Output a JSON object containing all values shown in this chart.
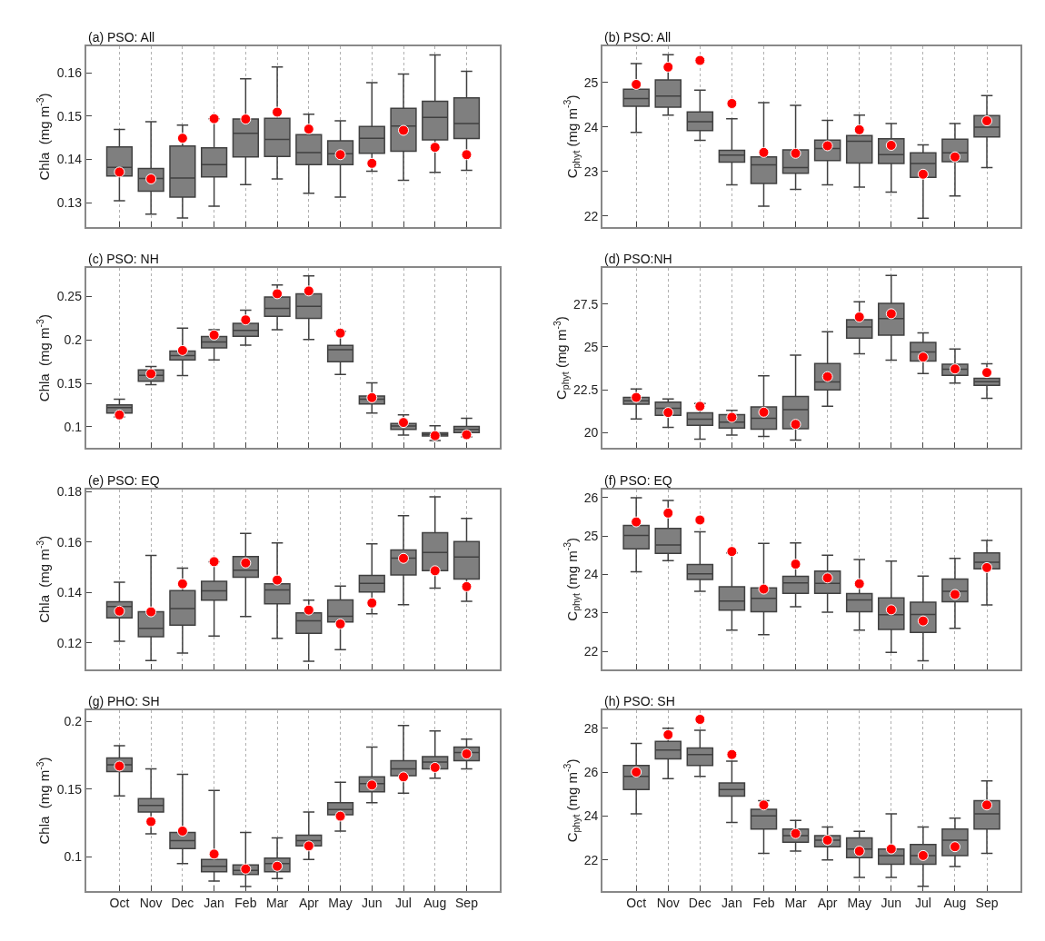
{
  "chart_data": [
    {
      "type": "box",
      "title": "(a) PSO: All",
      "ylabel": "Chla  (mg m$^{-3}$)",
      "categories": [
        "Oct",
        "Nov",
        "Dec",
        "Jan",
        "Feb",
        "Mar",
        "Apr",
        "May",
        "Jun",
        "Jul",
        "Aug",
        "Sep"
      ],
      "ylim": [
        0.1245,
        0.166
      ],
      "yticks": [
        0.13,
        0.14,
        0.15,
        0.16
      ],
      "grid": "x",
      "tick_labels": "y",
      "marker": "circle",
      "series": [
        {
          "color": "#7f7f7f",
          "boxes": [
            {
              "low": 0.1305,
              "q1": 0.1362,
              "median": 0.1382,
              "q3": 0.1429,
              "high": 0.1469
            },
            {
              "low": 0.1274,
              "q1": 0.1327,
              "median": 0.1356,
              "q3": 0.1379,
              "high": 0.1487
            },
            {
              "low": 0.1265,
              "q1": 0.1313,
              "median": 0.1357,
              "q3": 0.1431,
              "high": 0.1479
            },
            {
              "low": 0.1292,
              "q1": 0.136,
              "median": 0.1388,
              "q3": 0.1427,
              "high": 0.1494
            },
            {
              "low": 0.1342,
              "q1": 0.1406,
              "median": 0.146,
              "q3": 0.1493,
              "high": 0.1586
            },
            {
              "low": 0.1355,
              "q1": 0.1407,
              "median": 0.1446,
              "q3": 0.1495,
              "high": 0.1613
            },
            {
              "low": 0.1322,
              "q1": 0.1388,
              "median": 0.1416,
              "q3": 0.1457,
              "high": 0.1504
            },
            {
              "low": 0.1313,
              "q1": 0.1388,
              "median": 0.1413,
              "q3": 0.1443,
              "high": 0.1489
            },
            {
              "low": 0.1373,
              "q1": 0.1414,
              "median": 0.1449,
              "q3": 0.1476,
              "high": 0.1577
            },
            {
              "low": 0.1352,
              "q1": 0.1419,
              "median": 0.1477,
              "q3": 0.1518,
              "high": 0.1597
            },
            {
              "low": 0.137,
              "q1": 0.1445,
              "median": 0.1497,
              "q3": 0.1534,
              "high": 0.1641
            },
            {
              "low": 0.1375,
              "q1": 0.1448,
              "median": 0.1483,
              "q3": 0.1542,
              "high": 0.1603
            }
          ]
        },
        {
          "type": "scatter",
          "color": "#ff0000",
          "x": [
            "Oct",
            "Nov",
            "Dec",
            "Jan",
            "Feb",
            "Mar",
            "Apr",
            "May",
            "Jun",
            "Jul",
            "Aug",
            "Sep"
          ],
          "values": [
            0.1371,
            0.1355,
            0.1449,
            0.1494,
            0.1493,
            0.1509,
            0.147,
            0.1411,
            0.1391,
            0.1467,
            0.1428,
            0.1411
          ]
        }
      ]
    },
    {
      "type": "box",
      "title": "(b) PSO: All",
      "ylabel": "C$_{phyt}$ (mg m$^{-3}$)",
      "categories": [
        "Oct",
        "Nov",
        "Dec",
        "Jan",
        "Feb",
        "Mar",
        "Apr",
        "May",
        "Jun",
        "Jul",
        "Aug",
        "Sep"
      ],
      "ylim": [
        21.76,
        25.81
      ],
      "yticks": [
        22,
        23,
        24,
        25
      ],
      "grid": "x",
      "tick_labels": "y",
      "marker": "circle",
      "series": [
        {
          "color": "#7f7f7f",
          "boxes": [
            {
              "low": 23.88,
              "q1": 24.47,
              "median": 24.64,
              "q3": 24.85,
              "high": 25.43
            },
            {
              "low": 24.27,
              "q1": 24.45,
              "median": 24.7,
              "q3": 25.06,
              "high": 25.63
            },
            {
              "low": 23.7,
              "q1": 23.92,
              "median": 24.12,
              "q3": 24.34,
              "high": 24.83
            },
            {
              "low": 22.7,
              "q1": 23.21,
              "median": 23.37,
              "q3": 23.48,
              "high": 24.19
            },
            {
              "low": 22.22,
              "q1": 22.73,
              "median": 23.15,
              "q3": 23.33,
              "high": 24.55
            },
            {
              "low": 22.6,
              "q1": 22.96,
              "median": 23.09,
              "q3": 23.49,
              "high": 24.49
            },
            {
              "low": 22.7,
              "q1": 23.25,
              "median": 23.52,
              "q3": 23.71,
              "high": 24.15
            },
            {
              "low": 22.65,
              "q1": 23.19,
              "median": 23.68,
              "q3": 23.81,
              "high": 24.27
            },
            {
              "low": 22.54,
              "q1": 23.18,
              "median": 23.38,
              "q3": 23.74,
              "high": 24.08
            },
            {
              "low": 21.95,
              "q1": 22.87,
              "median": 23.18,
              "q3": 23.42,
              "high": 23.6
            },
            {
              "low": 22.45,
              "q1": 23.22,
              "median": 23.42,
              "q3": 23.73,
              "high": 24.08
            },
            {
              "low": 23.09,
              "q1": 23.78,
              "median": 24.0,
              "q3": 24.26,
              "high": 24.71
            }
          ]
        },
        {
          "type": "scatter",
          "color": "#ff0000",
          "x": [
            "Oct",
            "Nov",
            "Dec",
            "Jan",
            "Feb",
            "Mar",
            "Apr",
            "May",
            "Jun",
            "Jul",
            "Aug",
            "Sep"
          ],
          "values": [
            24.96,
            25.35,
            25.5,
            24.53,
            23.43,
            23.41,
            23.58,
            23.94,
            23.59,
            22.94,
            23.33,
            24.14
          ]
        }
      ]
    },
    {
      "type": "box",
      "title": "(c) PSO: NH",
      "ylabel": "Chla  (mg m$^{-3}$)",
      "categories": [
        "Oct",
        "Nov",
        "Dec",
        "Jan",
        "Feb",
        "Mar",
        "Apr",
        "May",
        "Jun",
        "Jul",
        "Aug",
        "Sep"
      ],
      "ylim": [
        0.0757,
        0.283
      ],
      "yticks": [
        0.1,
        0.15,
        0.2,
        0.25
      ],
      "grid": "x",
      "tick_labels": "y",
      "marker": "circle",
      "series": [
        {
          "color": "#7f7f7f",
          "boxes": [
            {
              "low": 0.1116,
              "q1": 0.1159,
              "median": 0.1221,
              "q3": 0.1254,
              "high": 0.1319
            },
            {
              "low": 0.1486,
              "q1": 0.1525,
              "median": 0.1594,
              "q3": 0.1656,
              "high": 0.1696
            },
            {
              "low": 0.1591,
              "q1": 0.1772,
              "median": 0.1822,
              "q3": 0.1873,
              "high": 0.2138
            },
            {
              "low": 0.1772,
              "q1": 0.1909,
              "median": 0.1978,
              "q3": 0.204,
              "high": 0.212
            },
            {
              "low": 0.1942,
              "q1": 0.2043,
              "median": 0.2112,
              "q3": 0.2192,
              "high": 0.2344
            },
            {
              "low": 0.212,
              "q1": 0.2272,
              "median": 0.2366,
              "q3": 0.2496,
              "high": 0.2634
            },
            {
              "low": 0.2007,
              "q1": 0.225,
              "median": 0.2388,
              "q3": 0.2533,
              "high": 0.2739
            },
            {
              "low": 0.1605,
              "q1": 0.175,
              "median": 0.1888,
              "q3": 0.1938,
              "high": 0.2101
            },
            {
              "low": 0.1159,
              "q1": 0.1264,
              "median": 0.1319,
              "q3": 0.1355,
              "high": 0.1507
            },
            {
              "low": 0.0906,
              "q1": 0.0971,
              "median": 0.1011,
              "q3": 0.104,
              "high": 0.1138
            },
            {
              "low": 0.0844,
              "q1": 0.0895,
              "median": 0.0913,
              "q3": 0.0931,
              "high": 0.1014
            },
            {
              "low": 0.0885,
              "q1": 0.0935,
              "median": 0.097,
              "q3": 0.1005,
              "high": 0.11
            }
          ]
        },
        {
          "type": "scatter",
          "color": "#ff0000",
          "x": [
            "Oct",
            "Nov",
            "Dec",
            "Jan",
            "Feb",
            "Mar",
            "Apr",
            "May",
            "Jun",
            "Jul",
            "Aug",
            "Sep"
          ],
          "values": [
            0.1138,
            0.1612,
            0.188,
            0.2058,
            0.2232,
            0.2533,
            0.2565,
            0.208,
            0.1337,
            0.1051,
            0.0899,
            0.091
          ]
        }
      ]
    },
    {
      "type": "box",
      "title": "(d) PSO:NH",
      "ylabel": "C$_{phyt}$ (mg m$^{-3}$)",
      "categories": [
        "Oct",
        "Nov",
        "Dec",
        "Jan",
        "Feb",
        "Mar",
        "Apr",
        "May",
        "Jun",
        "Jul",
        "Aug",
        "Sep"
      ],
      "ylim": [
        19.1,
        29.6
      ],
      "yticks": [
        20,
        22.5,
        25,
        27.5
      ],
      "grid": "x",
      "tick_labels": "y",
      "marker": "circle",
      "series": [
        {
          "color": "#7f7f7f",
          "boxes": [
            {
              "low": 20.8,
              "q1": 21.66,
              "median": 21.85,
              "q3": 22.05,
              "high": 22.54
            },
            {
              "low": 20.31,
              "q1": 21.0,
              "median": 21.42,
              "q3": 21.77,
              "high": 21.96
            },
            {
              "low": 19.62,
              "q1": 20.42,
              "median": 20.78,
              "q3": 21.15,
              "high": 21.7
            },
            {
              "low": 19.86,
              "q1": 20.27,
              "median": 20.61,
              "q3": 21.04,
              "high": 21.3
            },
            {
              "low": 19.77,
              "q1": 20.2,
              "median": 20.83,
              "q3": 21.49,
              "high": 23.31
            },
            {
              "low": 19.56,
              "q1": 20.23,
              "median": 21.34,
              "q3": 22.11,
              "high": 24.51
            },
            {
              "low": 21.53,
              "q1": 22.49,
              "median": 22.95,
              "q3": 24.02,
              "high": 25.88
            },
            {
              "low": 24.59,
              "q1": 25.51,
              "median": 26.16,
              "q3": 26.58,
              "high": 27.63
            },
            {
              "low": 24.23,
              "q1": 25.68,
              "median": 26.65,
              "q3": 27.53,
              "high": 29.17
            },
            {
              "low": 23.44,
              "q1": 24.17,
              "median": 24.7,
              "q3": 25.26,
              "high": 25.81
            },
            {
              "low": 22.88,
              "q1": 23.33,
              "median": 23.69,
              "q3": 23.98,
              "high": 24.87
            },
            {
              "low": 22.0,
              "q1": 22.75,
              "median": 22.96,
              "q3": 23.16,
              "high": 24.01
            }
          ]
        },
        {
          "type": "scatter",
          "color": "#ff0000",
          "x": [
            "Oct",
            "Nov",
            "Dec",
            "Jan",
            "Feb",
            "Mar",
            "Apr",
            "May",
            "Jun",
            "Jul",
            "Aug",
            "Sep"
          ],
          "values": [
            22.05,
            21.17,
            21.53,
            20.89,
            21.19,
            20.48,
            23.26,
            26.74,
            26.93,
            24.4,
            23.71,
            23.5
          ]
        }
      ]
    },
    {
      "type": "box",
      "title": "(e) PSO: EQ",
      "ylabel": "Chla  (mg m$^{-3}$)",
      "categories": [
        "Oct",
        "Nov",
        "Dec",
        "Jan",
        "Feb",
        "Mar",
        "Apr",
        "May",
        "Jun",
        "Jul",
        "Aug",
        "Sep"
      ],
      "ylim": [
        0.1095,
        0.1809
      ],
      "yticks": [
        0.12,
        0.14,
        0.16,
        0.18
      ],
      "grid": "x",
      "tick_labels": "y",
      "marker": "circle",
      "series": [
        {
          "color": "#7f7f7f",
          "boxes": [
            {
              "low": 0.1206,
              "q1": 0.1299,
              "median": 0.1344,
              "q3": 0.1363,
              "high": 0.144
            },
            {
              "low": 0.113,
              "q1": 0.1224,
              "median": 0.1258,
              "q3": 0.1323,
              "high": 0.1547
            },
            {
              "low": 0.1159,
              "q1": 0.127,
              "median": 0.1336,
              "q3": 0.1407,
              "high": 0.1496
            },
            {
              "low": 0.1227,
              "q1": 0.1369,
              "median": 0.1406,
              "q3": 0.1444,
              "high": 0.1521
            },
            {
              "low": 0.1304,
              "q1": 0.146,
              "median": 0.1488,
              "q3": 0.1542,
              "high": 0.1634
            },
            {
              "low": 0.1218,
              "q1": 0.1355,
              "median": 0.141,
              "q3": 0.1434,
              "high": 0.1596
            },
            {
              "low": 0.1127,
              "q1": 0.1238,
              "median": 0.1287,
              "q3": 0.1319,
              "high": 0.1369
            },
            {
              "low": 0.1173,
              "q1": 0.1283,
              "median": 0.1305,
              "q3": 0.137,
              "high": 0.1425
            },
            {
              "low": 0.1315,
              "q1": 0.1402,
              "median": 0.1436,
              "q3": 0.1467,
              "high": 0.1593
            },
            {
              "low": 0.1351,
              "q1": 0.1469,
              "median": 0.1536,
              "q3": 0.1568,
              "high": 0.1704
            },
            {
              "low": 0.1417,
              "q1": 0.1486,
              "median": 0.1558,
              "q3": 0.1637,
              "high": 0.1779
            },
            {
              "low": 0.1365,
              "q1": 0.1453,
              "median": 0.154,
              "q3": 0.1602,
              "high": 0.1693
            }
          ]
        },
        {
          "type": "scatter",
          "color": "#ff0000",
          "x": [
            "Oct",
            "Nov",
            "Dec",
            "Jan",
            "Feb",
            "Mar",
            "Apr",
            "May",
            "Jun",
            "Jul",
            "Aug",
            "Sep"
          ],
          "values": [
            0.1326,
            0.1323,
            0.1434,
            0.1522,
            0.1517,
            0.1449,
            0.133,
            0.1275,
            0.1358,
            0.1535,
            0.1486,
            0.1423
          ]
        }
      ]
    },
    {
      "type": "box",
      "title": "(f) PSO: EQ",
      "ylabel": "C$_{phyt}$ (mg m$^{-3}$)",
      "categories": [
        "Oct",
        "Nov",
        "Dec",
        "Jan",
        "Feb",
        "Mar",
        "Apr",
        "May",
        "Jun",
        "Jul",
        "Aug",
        "Sep"
      ],
      "ylim": [
        21.53,
        26.22
      ],
      "yticks": [
        22,
        23,
        24,
        25,
        26
      ],
      "grid": "x",
      "tick_labels": "y",
      "marker": "circle",
      "series": [
        {
          "color": "#7f7f7f",
          "boxes": [
            {
              "low": 24.07,
              "q1": 24.67,
              "median": 25.02,
              "q3": 25.28,
              "high": 26.0
            },
            {
              "low": 24.36,
              "q1": 24.55,
              "median": 24.77,
              "q3": 25.2,
              "high": 25.93
            },
            {
              "low": 23.56,
              "q1": 23.87,
              "median": 24.02,
              "q3": 24.26,
              "high": 25.11
            },
            {
              "low": 22.55,
              "q1": 23.07,
              "median": 23.31,
              "q3": 23.68,
              "high": 24.56
            },
            {
              "low": 22.43,
              "q1": 23.03,
              "median": 23.38,
              "q3": 23.65,
              "high": 24.81
            },
            {
              "low": 23.16,
              "q1": 23.51,
              "median": 23.78,
              "q3": 23.95,
              "high": 24.82
            },
            {
              "low": 23.02,
              "q1": 23.51,
              "median": 23.77,
              "q3": 24.09,
              "high": 24.5
            },
            {
              "low": 22.55,
              "q1": 23.03,
              "median": 23.34,
              "q3": 23.5,
              "high": 24.39
            },
            {
              "low": 21.97,
              "q1": 22.57,
              "median": 22.95,
              "q3": 23.39,
              "high": 24.35
            },
            {
              "low": 21.75,
              "q1": 22.49,
              "median": 22.96,
              "q3": 23.28,
              "high": 23.96
            },
            {
              "low": 22.6,
              "q1": 23.29,
              "median": 23.56,
              "q3": 23.88,
              "high": 24.42
            },
            {
              "low": 23.21,
              "q1": 24.15,
              "median": 24.32,
              "q3": 24.56,
              "high": 24.89
            }
          ]
        },
        {
          "type": "scatter",
          "color": "#ff0000",
          "x": [
            "Oct",
            "Nov",
            "Dec",
            "Jan",
            "Feb",
            "Mar",
            "Apr",
            "May",
            "Jun",
            "Jul",
            "Aug",
            "Sep"
          ],
          "values": [
            25.37,
            25.6,
            25.42,
            24.6,
            23.62,
            24.27,
            23.91,
            23.76,
            23.08,
            22.79,
            23.48,
            24.18
          ]
        }
      ]
    },
    {
      "type": "box",
      "title": "(g) PHO: SH",
      "ylabel": "Chla  (mg m$^{-3}$)",
      "categories": [
        "Oct",
        "Nov",
        "Dec",
        "Jan",
        "Feb",
        "Mar",
        "Apr",
        "May",
        "Jun",
        "Jul",
        "Aug",
        "Sep"
      ],
      "ylim": [
        0.075,
        0.208
      ],
      "yticks": [
        0.1,
        0.15,
        0.2
      ],
      "grid": "x",
      "marker": "circle",
      "series": [
        {
          "color": "#7f7f7f",
          "boxes": [
            {
              "low": 0.145,
              "q1": 0.163,
              "median": 0.168,
              "q3": 0.173,
              "high": 0.182
            },
            {
              "low": 0.117,
              "q1": 0.133,
              "median": 0.138,
              "q3": 0.143,
              "high": 0.165
            },
            {
              "low": 0.095,
              "q1": 0.106,
              "median": 0.112,
              "q3": 0.118,
              "high": 0.161
            },
            {
              "low": 0.082,
              "q1": 0.089,
              "median": 0.093,
              "q3": 0.098,
              "high": 0.149
            },
            {
              "low": 0.078,
              "q1": 0.087,
              "median": 0.09,
              "q3": 0.094,
              "high": 0.118
            },
            {
              "low": 0.084,
              "q1": 0.089,
              "median": 0.095,
              "q3": 0.099,
              "high": 0.114
            },
            {
              "low": 0.098,
              "q1": 0.108,
              "median": 0.112,
              "q3": 0.116,
              "high": 0.133
            },
            {
              "low": 0.119,
              "q1": 0.131,
              "median": 0.135,
              "q3": 0.14,
              "high": 0.155
            },
            {
              "low": 0.14,
              "q1": 0.148,
              "median": 0.154,
              "q3": 0.159,
              "high": 0.181
            },
            {
              "low": 0.147,
              "q1": 0.16,
              "median": 0.165,
              "q3": 0.171,
              "high": 0.197
            },
            {
              "low": 0.158,
              "q1": 0.165,
              "median": 0.17,
              "q3": 0.174,
              "high": 0.193
            },
            {
              "low": 0.165,
              "q1": 0.171,
              "median": 0.177,
              "q3": 0.181,
              "high": 0.187
            }
          ]
        },
        {
          "type": "scatter",
          "color": "#ff0000",
          "x": [
            "Oct",
            "Nov",
            "Dec",
            "Jan",
            "Feb",
            "Mar",
            "Apr",
            "May",
            "Jun",
            "Jul",
            "Aug",
            "Sep"
          ],
          "values": [
            0.167,
            0.126,
            0.119,
            0.102,
            0.091,
            0.093,
            0.108,
            0.13,
            0.153,
            0.159,
            0.166,
            0.176
          ]
        }
      ]
    },
    {
      "type": "box",
      "title": "(h) PSO: SH",
      "ylabel": "C$_{phyt}$ (mg m$^{-3}$)",
      "categories": [
        "Oct",
        "Nov",
        "Dec",
        "Jan",
        "Feb",
        "Mar",
        "Apr",
        "May",
        "Jun",
        "Jul",
        "Aug",
        "Sep"
      ],
      "ylim": [
        20.6,
        28.8
      ],
      "yticks": [
        22,
        24,
        26,
        28
      ],
      "grid": "x",
      "marker": "circle",
      "series": [
        {
          "color": "#7f7f7f",
          "boxes": [
            {
              "low": 24.1,
              "q1": 25.2,
              "median": 25.8,
              "q3": 26.3,
              "high": 27.3
            },
            {
              "low": 25.7,
              "q1": 26.6,
              "median": 27.0,
              "q3": 27.4,
              "high": 28.0
            },
            {
              "low": 25.8,
              "q1": 26.3,
              "median": 26.8,
              "q3": 27.1,
              "high": 27.9
            },
            {
              "low": 23.7,
              "q1": 24.9,
              "median": 25.2,
              "q3": 25.5,
              "high": 26.5
            },
            {
              "low": 22.3,
              "q1": 23.4,
              "median": 24.0,
              "q3": 24.3,
              "high": 24.7
            },
            {
              "low": 22.4,
              "q1": 22.8,
              "median": 23.1,
              "q3": 23.4,
              "high": 23.8
            },
            {
              "low": 22.0,
              "q1": 22.6,
              "median": 22.9,
              "q3": 23.1,
              "high": 23.5
            },
            {
              "low": 21.2,
              "q1": 22.1,
              "median": 22.5,
              "q3": 23.0,
              "high": 23.3
            },
            {
              "low": 21.2,
              "q1": 21.8,
              "median": 22.2,
              "q3": 22.5,
              "high": 24.1
            },
            {
              "low": 20.8,
              "q1": 21.8,
              "median": 22.2,
              "q3": 22.7,
              "high": 23.5
            },
            {
              "low": 21.7,
              "q1": 22.2,
              "median": 22.9,
              "q3": 23.4,
              "high": 23.9
            },
            {
              "low": 22.3,
              "q1": 23.4,
              "median": 24.1,
              "q3": 24.7,
              "high": 25.6
            }
          ]
        },
        {
          "type": "scatter",
          "color": "#ff0000",
          "x": [
            "Oct",
            "Nov",
            "Dec",
            "Jan",
            "Feb",
            "Mar",
            "Apr",
            "May",
            "Jun",
            "Jul",
            "Aug",
            "Sep"
          ],
          "values": [
            26.0,
            27.7,
            28.4,
            26.8,
            24.5,
            23.2,
            22.9,
            22.4,
            22.5,
            22.2,
            22.6,
            24.5
          ]
        }
      ]
    }
  ]
}
